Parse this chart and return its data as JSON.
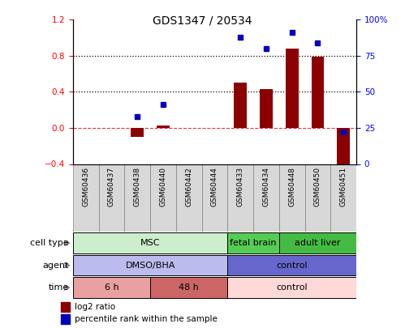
{
  "title": "GDS1347 / 20534",
  "samples": [
    "GSM60436",
    "GSM60437",
    "GSM60438",
    "GSM60440",
    "GSM60442",
    "GSM60444",
    "GSM60433",
    "GSM60434",
    "GSM60448",
    "GSM60450",
    "GSM60451"
  ],
  "log2_ratio": [
    0,
    0,
    -0.1,
    0.03,
    0,
    0,
    0.5,
    0.43,
    0.88,
    0.79,
    -0.45
  ],
  "percentile_rank": [
    null,
    null,
    33,
    41,
    null,
    null,
    88,
    80,
    91,
    84,
    22
  ],
  "ylim_left": [
    -0.4,
    1.2
  ],
  "ylim_right": [
    0,
    100
  ],
  "yticks_left": [
    -0.4,
    0.0,
    0.4,
    0.8,
    1.2
  ],
  "yticks_right": [
    0,
    25,
    50,
    75,
    100
  ],
  "ytick_labels_right": [
    "0",
    "25",
    "50",
    "75",
    "100%"
  ],
  "hlines": [
    0.4,
    0.8
  ],
  "bar_color": "#8B0000",
  "dot_color": "#0000BB",
  "zero_line_color": "#EE3333",
  "hline_color": "#000000",
  "cell_type_groups": [
    {
      "label": "MSC",
      "start": 0,
      "end": 6,
      "color": "#cceecc"
    },
    {
      "label": "fetal brain",
      "start": 6,
      "end": 8,
      "color": "#55cc55"
    },
    {
      "label": "adult liver",
      "start": 8,
      "end": 11,
      "color": "#44bb44"
    }
  ],
  "agent_groups": [
    {
      "label": "DMSO/BHA",
      "start": 0,
      "end": 6,
      "color": "#bbbbee"
    },
    {
      "label": "control",
      "start": 6,
      "end": 11,
      "color": "#6666cc"
    }
  ],
  "time_groups": [
    {
      "label": "6 h",
      "start": 0,
      "end": 3,
      "color": "#e8a0a0"
    },
    {
      "label": "48 h",
      "start": 3,
      "end": 6,
      "color": "#cc6666"
    },
    {
      "label": "control",
      "start": 6,
      "end": 11,
      "color": "#ffd8d8"
    }
  ],
  "row_labels": [
    "cell type",
    "agent",
    "time"
  ],
  "legend_items": [
    {
      "label": "log2 ratio",
      "color": "#8B0000"
    },
    {
      "label": "percentile rank within the sample",
      "color": "#0000BB"
    }
  ]
}
